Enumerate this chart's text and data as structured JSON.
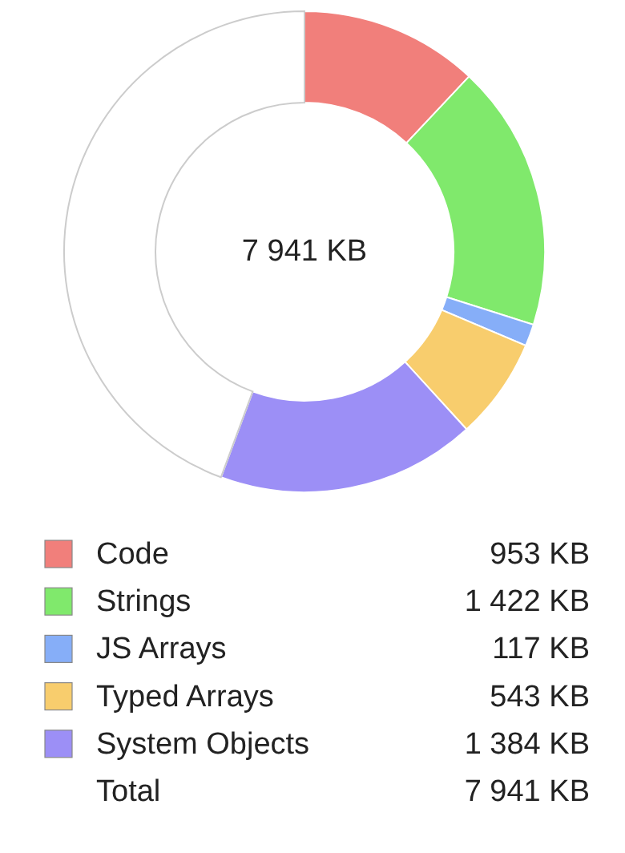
{
  "chart_data": {
    "type": "donut",
    "title": "7 941 KB",
    "categories": [
      "Code",
      "Strings",
      "JS Arrays",
      "Typed Arrays",
      "System Objects",
      null
    ],
    "values": [
      953,
      1422,
      117,
      543,
      1384,
      3522
    ],
    "colors": [
      "#f17f7b",
      "#80e96c",
      "#86aef8",
      "#f8cd6d",
      "#9c8ff6",
      "#ffffff"
    ],
    "value_labels": [
      "953 KB",
      "1 422 KB",
      "117 KB",
      "543 KB",
      "1 384 KB",
      null
    ],
    "annotations": [
      "Total",
      "7 941 KB"
    ],
    "legend": "bottom"
  }
}
